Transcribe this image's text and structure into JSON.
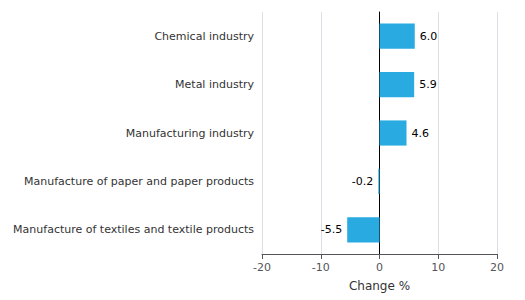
{
  "chart_data": {
    "type": "bar",
    "orientation": "horizontal",
    "categories": [
      "Chemical industry",
      "Metal industry",
      "Manufacturing industry",
      "Manufacture of paper and paper products",
      "Manufacture of textiles and textile products"
    ],
    "values": [
      6.0,
      5.9,
      4.6,
      -0.2,
      -5.5
    ],
    "value_labels": [
      "6.0",
      "5.9",
      "4.6",
      "-0.2",
      "-5.5"
    ],
    "data_labels": true,
    "color": "#29abe2",
    "xlabel": "Change %",
    "xlim": [
      -20,
      20
    ],
    "xticks": [
      -20,
      -10,
      0,
      10,
      20
    ],
    "grid": true
  }
}
